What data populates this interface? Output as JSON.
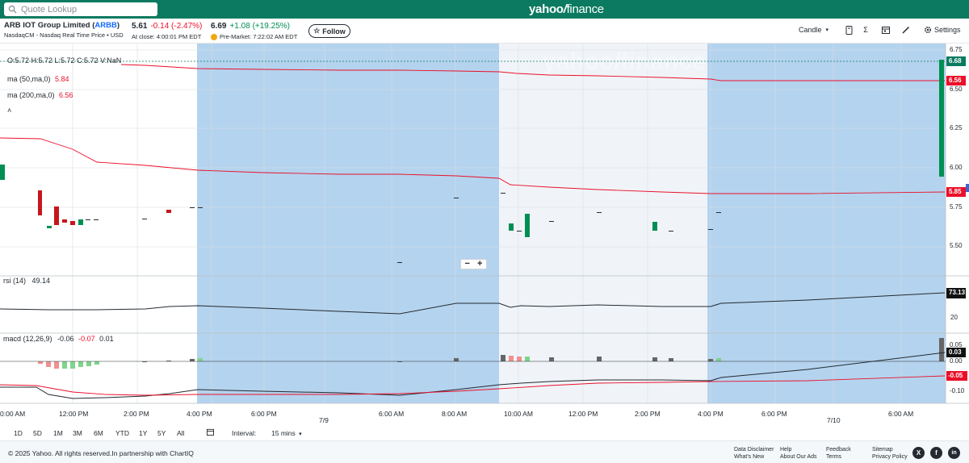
{
  "search": {
    "placeholder": "Quote Lookup"
  },
  "logo": {
    "yahoo": "yahoo",
    "slash": "/",
    "finance": "finance"
  },
  "quote": {
    "name": "ARB IOT Group Limited (",
    "ticker": "ARBB",
    "close_paren": ")",
    "exchange": "NasdaqCM - Nasdaq Real Time Price • USD",
    "close_price": "5.61",
    "close_change": "-0.14",
    "close_pct": "(-2.47%)",
    "close_time": "At close: 4:00:01 PM EDT",
    "pre_price": "6.69",
    "pre_change": "+1.08",
    "pre_pct": "(+19.25%)",
    "pre_time": "Pre-Market: 7:22:02 AM EDT"
  },
  "follow_label": "Follow",
  "toolbar": {
    "chart_type": "Candle",
    "settings": "Settings",
    "sigma": "Σ"
  },
  "overlay": {
    "ohlc": "O:5.72  H:5.72  L:5.72  C:5.72  V:NaN",
    "ma50_label": "ma (50,ma,0)",
    "ma50_value": "5.84",
    "ma200_label": "ma (200,ma,0)",
    "ma200_value": "6.56",
    "watermark": "yahoo/finance"
  },
  "rsi": {
    "label": "rsi (14)",
    "value": "49.14",
    "last": "73.13"
  },
  "macd": {
    "label": "macd (12,26,9)",
    "v1": "-0.06",
    "v2": "-0.07",
    "v3": "0.01",
    "last_macd": "0.03",
    "last_signal": "-0.05"
  },
  "y_axis": {
    "price_ticks": [
      "6.75",
      "6.50",
      "6.25",
      "6.00",
      "5.75",
      "5.50"
    ],
    "price_last": "6.68",
    "ma200_last": "6.56",
    "ma50_last": "5.85",
    "rsi_ticks": [
      "20"
    ],
    "macd_ticks": [
      "0.05",
      "0.00",
      "-0.10"
    ]
  },
  "x_axis": {
    "labels": [
      "0:00 AM",
      "12:00 PM",
      "2:00 PM",
      "4:00 PM",
      "6:00 PM",
      "7/9",
      "6:00 AM",
      "8:00 AM",
      "10:00 AM",
      "12:00 PM",
      "2:00 PM",
      "4:00 PM",
      "6:00 PM",
      "7/10",
      "6:00 AM"
    ]
  },
  "ranges": [
    "1D",
    "5D",
    "1M",
    "3M",
    "6M",
    "YTD",
    "1Y",
    "5Y",
    "All"
  ],
  "interval": {
    "label": "Interval:",
    "value": "15 mins"
  },
  "footer": {
    "copyright": "© 2025 Yahoo. All rights reserved.In partnership with ChartIQ",
    "links": [
      [
        "Data Disclaimer",
        "What's New"
      ],
      [
        "Help",
        "About Our Ads"
      ],
      [
        "Feedback",
        "Terms"
      ],
      [
        "Sitemap",
        "Privacy Policy"
      ]
    ],
    "social": [
      "X",
      "f",
      "in"
    ]
  },
  "colors": {
    "brand": "#0b7a60",
    "up": "#008f53",
    "down": "#eb0f29",
    "session": "#b4d3ee",
    "premarket": "#f0f4f8"
  },
  "chart_data": {
    "type": "candlestick",
    "price_range": [
      5.4,
      6.77
    ],
    "candles": [
      {
        "x": "7/8 11:30",
        "o": 5.77,
        "h": 5.78,
        "c": 5.65,
        "l": 5.64
      },
      {
        "x": "7/8 11:45",
        "o": 5.64,
        "h": 5.64,
        "c": 5.63,
        "l": 5.63
      },
      {
        "x": "7/8 12:00",
        "o": 5.71,
        "h": 5.71,
        "c": 5.62,
        "l": 5.62
      }
    ],
    "rsi_last": 73.13,
    "macd_last": 0.03,
    "signal_last": -0.05
  }
}
